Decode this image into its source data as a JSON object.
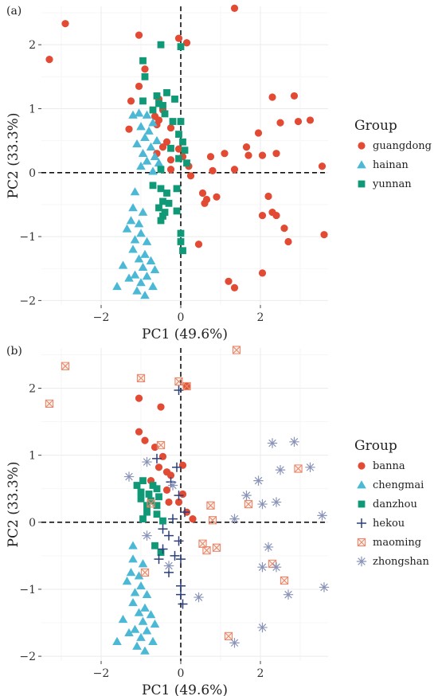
{
  "chart_data": [
    {
      "panel_label": "(a)",
      "type": "scatter",
      "xlabel": "PC1 (49.6%)",
      "ylabel": "PC2 (33.3%)",
      "xlim": [
        -3.5,
        3.7
      ],
      "ylim": [
        -2.07,
        2.6
      ],
      "x_ticks": [
        -2,
        0,
        2
      ],
      "y_ticks": [
        -2,
        -1,
        0,
        1,
        2
      ],
      "tick_labels_x": [
        "−2",
        "0",
        "2"
      ],
      "tick_labels_y": [
        "−2",
        "−1",
        "0",
        "1",
        "2"
      ],
      "reference_lines": {
        "x": 0,
        "y": 0,
        "style": "dashed"
      },
      "grid": true,
      "legend": {
        "title": "Group",
        "position": "right"
      },
      "series": [
        {
          "name": "guangdong",
          "marker": "circle",
          "color": "#e24a33",
          "points": [
            [
              1.35,
              2.57
            ],
            [
              -2.9,
              2.33
            ],
            [
              -3.3,
              1.77
            ],
            [
              -1.05,
              2.15
            ],
            [
              -0.05,
              2.1
            ],
            [
              0.15,
              2.03
            ],
            [
              -0.9,
              1.62
            ],
            [
              -1.05,
              1.35
            ],
            [
              -1.25,
              1.12
            ],
            [
              -0.55,
              1.15
            ],
            [
              -0.45,
              0.98
            ],
            [
              -0.65,
              0.88
            ],
            [
              -0.55,
              0.82
            ],
            [
              -0.6,
              0.75
            ],
            [
              -1.3,
              0.68
            ],
            [
              -0.25,
              0.7
            ],
            [
              -0.35,
              0.48
            ],
            [
              -0.45,
              0.4
            ],
            [
              -0.05,
              0.37
            ],
            [
              0.05,
              0.25
            ],
            [
              -0.6,
              0.3
            ],
            [
              -0.25,
              0.2
            ],
            [
              0.2,
              0.1
            ],
            [
              -0.25,
              0.05
            ],
            [
              0.25,
              -0.05
            ],
            [
              2.3,
              1.18
            ],
            [
              2.85,
              1.2
            ],
            [
              2.5,
              0.78
            ],
            [
              2.95,
              0.8
            ],
            [
              3.25,
              0.82
            ],
            [
              1.95,
              0.62
            ],
            [
              1.65,
              0.4
            ],
            [
              1.7,
              0.27
            ],
            [
              2.05,
              0.27
            ],
            [
              2.4,
              0.3
            ],
            [
              3.55,
              0.1
            ],
            [
              1.1,
              0.3
            ],
            [
              1.35,
              0.05
            ],
            [
              0.75,
              0.25
            ],
            [
              0.8,
              0.03
            ],
            [
              0.55,
              -0.32
            ],
            [
              0.65,
              -0.42
            ],
            [
              0.6,
              -0.48
            ],
            [
              0.9,
              -0.38
            ],
            [
              2.2,
              -0.37
            ],
            [
              2.3,
              -0.62
            ],
            [
              2.4,
              -0.67
            ],
            [
              2.05,
              -0.67
            ],
            [
              2.6,
              -0.87
            ],
            [
              2.7,
              -1.08
            ],
            [
              3.6,
              -0.97
            ],
            [
              0.45,
              -1.12
            ],
            [
              1.2,
              -1.7
            ],
            [
              1.35,
              -1.8
            ],
            [
              2.05,
              -1.57
            ]
          ]
        },
        {
          "name": "hainan",
          "marker": "triangle",
          "color": "#4bb8d6",
          "points": [
            [
              -1.2,
              0.9
            ],
            [
              -1.05,
              0.93
            ],
            [
              -0.85,
              0.9
            ],
            [
              -0.7,
              0.78
            ],
            [
              -1.0,
              0.72
            ],
            [
              -0.8,
              0.65
            ],
            [
              -0.9,
              0.55
            ],
            [
              -0.6,
              0.5
            ],
            [
              -1.1,
              0.45
            ],
            [
              -0.75,
              0.4
            ],
            [
              -0.95,
              0.3
            ],
            [
              -0.65,
              0.25
            ],
            [
              -0.85,
              0.18
            ],
            [
              -0.55,
              0.15
            ],
            [
              -1.0,
              0.1
            ],
            [
              -0.7,
              0.02
            ],
            [
              -1.15,
              -0.3
            ],
            [
              -1.2,
              -0.55
            ],
            [
              -0.95,
              -0.62
            ],
            [
              -1.25,
              -0.75
            ],
            [
              -1.05,
              -0.8
            ],
            [
              -1.35,
              -0.88
            ],
            [
              -1.0,
              -0.95
            ],
            [
              -1.15,
              -1.05
            ],
            [
              -0.85,
              -1.08
            ],
            [
              -1.2,
              -1.2
            ],
            [
              -0.9,
              -1.28
            ],
            [
              -1.05,
              -1.35
            ],
            [
              -0.75,
              -1.38
            ],
            [
              -1.45,
              -1.45
            ],
            [
              -0.95,
              -1.48
            ],
            [
              -0.65,
              -1.52
            ],
            [
              -1.15,
              -1.6
            ],
            [
              -0.85,
              -1.62
            ],
            [
              -1.3,
              -1.65
            ],
            [
              -1.0,
              -1.72
            ],
            [
              -1.6,
              -1.78
            ],
            [
              -0.7,
              -1.78
            ],
            [
              -1.1,
              -1.85
            ],
            [
              -0.9,
              -1.92
            ]
          ]
        },
        {
          "name": "yunnan",
          "marker": "square",
          "color": "#0f9976",
          "points": [
            [
              -0.5,
              2.0
            ],
            [
              0.0,
              1.97
            ],
            [
              -0.95,
              1.75
            ],
            [
              -0.9,
              1.5
            ],
            [
              -0.6,
              1.2
            ],
            [
              -0.35,
              1.25
            ],
            [
              -0.95,
              1.12
            ],
            [
              -0.55,
              1.08
            ],
            [
              -0.45,
              1.05
            ],
            [
              -0.7,
              0.98
            ],
            [
              -0.4,
              0.92
            ],
            [
              -0.15,
              1.15
            ],
            [
              -0.2,
              0.8
            ],
            [
              0.0,
              0.8
            ],
            [
              -0.05,
              0.6
            ],
            [
              0.05,
              0.48
            ],
            [
              -0.25,
              0.38
            ],
            [
              0.1,
              0.35
            ],
            [
              -0.05,
              0.22
            ],
            [
              0.15,
              0.15
            ],
            [
              -0.5,
              0.05
            ],
            [
              -0.7,
              -0.2
            ],
            [
              -0.5,
              -0.25
            ],
            [
              -0.35,
              -0.32
            ],
            [
              -0.1,
              -0.25
            ],
            [
              -0.45,
              -0.45
            ],
            [
              -0.3,
              -0.48
            ],
            [
              -0.55,
              -0.55
            ],
            [
              -0.1,
              -0.6
            ],
            [
              -0.45,
              -0.68
            ],
            [
              -0.4,
              -0.62
            ],
            [
              -0.5,
              -0.75
            ],
            [
              0.0,
              -0.95
            ],
            [
              0.0,
              -1.08
            ],
            [
              0.05,
              -1.22
            ]
          ]
        }
      ]
    },
    {
      "panel_label": "(b)",
      "type": "scatter",
      "xlabel": "PC1 (49.6%)",
      "ylabel": "PC2 (33.3%)",
      "xlim": [
        -3.5,
        3.7
      ],
      "ylim": [
        -2.07,
        2.6
      ],
      "x_ticks": [
        -2,
        0,
        2
      ],
      "y_ticks": [
        -2,
        -1,
        0,
        1,
        2
      ],
      "tick_labels_x": [
        "−2",
        "0",
        "2"
      ],
      "tick_labels_y": [
        "−2",
        "−1",
        "0",
        "1",
        "2"
      ],
      "reference_lines": {
        "x": 0,
        "y": 0,
        "style": "dashed"
      },
      "grid": true,
      "legend": {
        "title": "Group",
        "position": "right"
      },
      "series": [
        {
          "name": "banna",
          "marker": "circle",
          "color": "#e24a33",
          "points": [
            [
              -1.05,
              1.85
            ],
            [
              -0.5,
              1.72
            ],
            [
              0.15,
              2.03
            ],
            [
              -1.05,
              1.35
            ],
            [
              -0.9,
              1.22
            ],
            [
              -0.65,
              1.12
            ],
            [
              -0.45,
              0.98
            ],
            [
              -0.55,
              0.82
            ],
            [
              -0.35,
              0.75
            ],
            [
              -0.25,
              0.7
            ],
            [
              0.05,
              0.85
            ],
            [
              -0.75,
              0.62
            ],
            [
              -0.35,
              0.48
            ],
            [
              0.05,
              0.42
            ],
            [
              -0.05,
              0.3
            ],
            [
              0.15,
              0.15
            ],
            [
              0.3,
              0.05
            ],
            [
              -0.3,
              0.3
            ]
          ]
        },
        {
          "name": "chengmai",
          "marker": "triangle",
          "color": "#4bb8d6",
          "points": [
            [
              -1.2,
              -0.35
            ],
            [
              -1.2,
              -0.55
            ],
            [
              -0.95,
              -0.62
            ],
            [
              -1.25,
              -0.75
            ],
            [
              -1.05,
              -0.8
            ],
            [
              -1.35,
              -0.88
            ],
            [
              -1.0,
              -0.95
            ],
            [
              -1.15,
              -1.05
            ],
            [
              -0.85,
              -1.08
            ],
            [
              -1.2,
              -1.2
            ],
            [
              -0.9,
              -1.28
            ],
            [
              -1.05,
              -1.35
            ],
            [
              -0.75,
              -1.38
            ],
            [
              -1.45,
              -1.45
            ],
            [
              -0.95,
              -1.48
            ],
            [
              -0.65,
              -1.52
            ],
            [
              -1.15,
              -1.6
            ],
            [
              -0.85,
              -1.62
            ],
            [
              -1.3,
              -1.65
            ],
            [
              -1.0,
              -1.72
            ],
            [
              -1.6,
              -1.78
            ],
            [
              -0.7,
              -1.78
            ],
            [
              -1.1,
              -1.85
            ],
            [
              -0.9,
              -1.92
            ]
          ]
        },
        {
          "name": "danzhou",
          "marker": "square",
          "color": "#0f9976",
          "points": [
            [
              -1.1,
              0.55
            ],
            [
              -0.95,
              0.62
            ],
            [
              -0.7,
              0.55
            ],
            [
              -1.0,
              0.45
            ],
            [
              -0.8,
              0.42
            ],
            [
              -0.6,
              0.5
            ],
            [
              -1.0,
              0.35
            ],
            [
              -0.75,
              0.32
            ],
            [
              -0.55,
              0.38
            ],
            [
              -0.85,
              0.25
            ],
            [
              -0.6,
              0.25
            ],
            [
              -0.85,
              0.15
            ],
            [
              -0.6,
              0.12
            ],
            [
              -0.95,
              0.05
            ],
            [
              -0.45,
              0.02
            ],
            [
              -0.65,
              -0.35
            ],
            [
              -0.5,
              -0.45
            ]
          ]
        },
        {
          "name": "hekou",
          "marker": "plus",
          "color": "#2c3e7a",
          "points": [
            [
              -0.05,
              1.97
            ],
            [
              -0.6,
              0.95
            ],
            [
              -0.1,
              0.82
            ],
            [
              -0.25,
              0.6
            ],
            [
              -0.05,
              0.4
            ],
            [
              0.1,
              0.15
            ],
            [
              -0.2,
              0.05
            ],
            [
              -0.45,
              -0.1
            ],
            [
              -0.3,
              -0.2
            ],
            [
              -0.05,
              -0.28
            ],
            [
              -0.45,
              -0.4
            ],
            [
              -0.55,
              -0.55
            ],
            [
              -0.15,
              -0.5
            ],
            [
              0.0,
              -0.55
            ],
            [
              0.0,
              -0.95
            ],
            [
              -0.3,
              -0.75
            ],
            [
              0.0,
              -1.08
            ],
            [
              0.05,
              -1.22
            ]
          ]
        },
        {
          "name": "maoming",
          "marker": "boxx",
          "color": "#e8896b",
          "points": [
            [
              1.4,
              2.57
            ],
            [
              -2.9,
              2.33
            ],
            [
              -3.3,
              1.77
            ],
            [
              -1.0,
              2.15
            ],
            [
              -0.05,
              2.1
            ],
            [
              0.15,
              2.03
            ],
            [
              -0.5,
              1.15
            ],
            [
              -0.75,
              0.28
            ],
            [
              0.75,
              0.25
            ],
            [
              0.8,
              0.03
            ],
            [
              1.7,
              0.27
            ],
            [
              2.95,
              0.8
            ],
            [
              0.55,
              -0.32
            ],
            [
              0.65,
              -0.42
            ],
            [
              0.9,
              -0.38
            ],
            [
              2.3,
              -0.62
            ],
            [
              2.6,
              -0.87
            ],
            [
              -0.9,
              -0.75
            ],
            [
              1.2,
              -1.7
            ]
          ]
        },
        {
          "name": "zhongshan",
          "marker": "asterisk",
          "color": "#8a93b8",
          "points": [
            [
              2.3,
              1.18
            ],
            [
              2.85,
              1.2
            ],
            [
              2.5,
              0.78
            ],
            [
              3.25,
              0.82
            ],
            [
              1.95,
              0.62
            ],
            [
              -1.3,
              0.68
            ],
            [
              -0.85,
              0.9
            ],
            [
              1.65,
              0.4
            ],
            [
              2.05,
              0.27
            ],
            [
              2.4,
              0.3
            ],
            [
              3.55,
              0.1
            ],
            [
              1.35,
              0.05
            ],
            [
              2.2,
              -0.37
            ],
            [
              2.05,
              -0.67
            ],
            [
              2.4,
              -0.67
            ],
            [
              2.7,
              -1.08
            ],
            [
              3.6,
              -0.97
            ],
            [
              0.45,
              -1.12
            ],
            [
              1.35,
              -1.8
            ],
            [
              2.05,
              -1.57
            ],
            [
              -0.85,
              -0.2
            ],
            [
              -0.2,
              0.55
            ],
            [
              -0.3,
              -0.65
            ]
          ]
        }
      ]
    }
  ]
}
